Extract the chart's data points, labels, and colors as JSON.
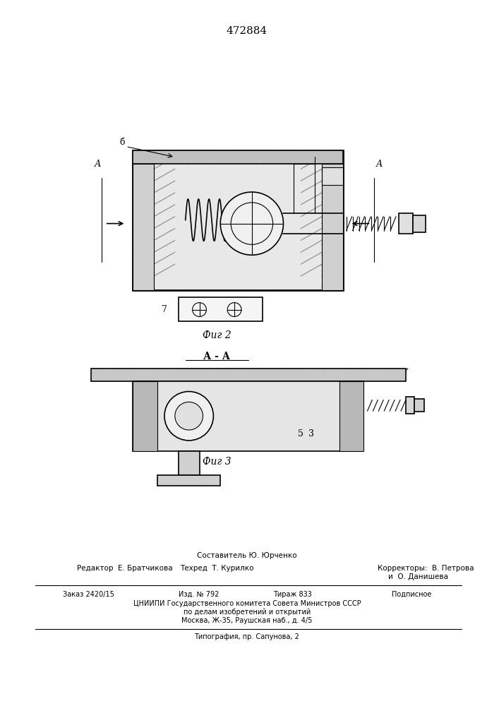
{
  "patent_number": "472884",
  "bg_color": "#ffffff",
  "line_color": "#000000",
  "fig2_label": "Фиг 2",
  "fig3_label": "Фиг 3",
  "section_label": "А - А",
  "label_A_left": "А",
  "label_A_right": "А",
  "label_b": "б",
  "label_7": "7",
  "label_5": "5",
  "label_3": "3",
  "footer_line1": "Составитель Ю. Юрченко",
  "footer_line2_col1": "Редактор  Е. Братчикова",
  "footer_line2_col2": "Техред  Т. Курилко",
  "footer_line2_col3": "Корректоры:  В. Петрова",
  "footer_line2_col3b": "и  О. Данишева",
  "footer_line3_col1": "Заказ 2420/15",
  "footer_line3_col2": "Изд. № 792",
  "footer_line3_col3": "Тираж 833",
  "footer_line3_col4": "Подписное",
  "footer_line4": "ЦНИИПИ Государственного комитета Совета Министров СССР",
  "footer_line5": "по делам изобретений и открытий",
  "footer_line6": "Москва, Ж-35, Раушская наб., д. 4/5",
  "footer_line7": "Типография, пр. Сапунова, 2"
}
